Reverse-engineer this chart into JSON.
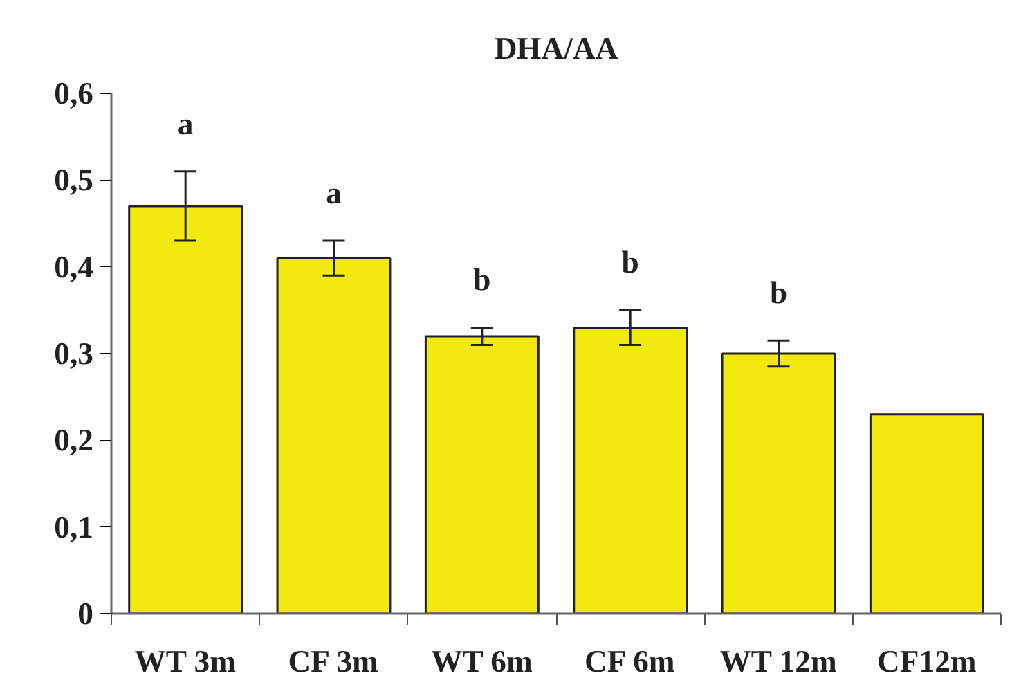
{
  "chart_data": {
    "type": "bar",
    "title": "DHA/AA",
    "categories": [
      "WT 3m",
      "CF 3m",
      "WT 6m",
      "CF 6m",
      "WT 12m",
      "CF12m"
    ],
    "values": [
      0.47,
      0.41,
      0.32,
      0.33,
      0.3,
      0.23
    ],
    "errors": [
      0.04,
      0.02,
      0.01,
      0.02,
      0.015,
      null
    ],
    "color": "#f2ea0e",
    "ylim": [
      0,
      0.6
    ],
    "yticks": [
      {
        "value": 0,
        "label": "0"
      },
      {
        "value": 0.1,
        "label": "0,1"
      },
      {
        "value": 0.2,
        "label": "0,2"
      },
      {
        "value": 0.3,
        "label": "0,3"
      },
      {
        "value": 0.4,
        "label": "0,4"
      },
      {
        "value": 0.5,
        "label": "0,5"
      },
      {
        "value": 0.6,
        "label": "0,6"
      }
    ],
    "annotations": [
      "a",
      "a",
      "b",
      "b",
      "b"
    ],
    "grid": false
  }
}
